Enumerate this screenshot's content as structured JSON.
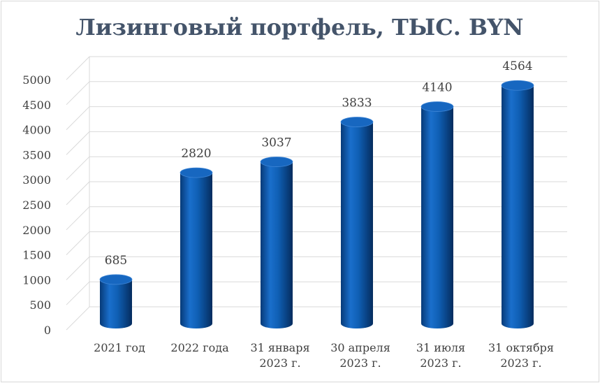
{
  "chart_data": {
    "type": "bar",
    "style": "3d-cylinder",
    "title": "Лизинговый портфель, ТЫС. BYN",
    "categories": [
      [
        "2021 год"
      ],
      [
        "2022 года"
      ],
      [
        "31 января",
        "2023 г."
      ],
      [
        "30 апреля",
        "2023 г."
      ],
      [
        "31 июля",
        "2023 г."
      ],
      [
        "31 октября",
        "2023 г."
      ]
    ],
    "values": [
      685,
      2820,
      3037,
      3833,
      4140,
      4564
    ],
    "data_labels": [
      "685",
      "2820",
      "3037",
      "3833",
      "4140",
      "4564"
    ],
    "y_ticks": [
      "0",
      "500",
      "1000",
      "1500",
      "2000",
      "2500",
      "3000",
      "3500",
      "4000",
      "4500",
      "5000"
    ],
    "ylim": [
      0,
      5000
    ],
    "grid": true,
    "legend": "none",
    "colors": {
      "bar": "#0f5fb4",
      "bar_dark": "#073a78",
      "bar_light": "#3f86d6",
      "bar_top": "#1767c0",
      "grid": "#d9d9d9",
      "title": "#44546a",
      "text": "#404040"
    }
  }
}
